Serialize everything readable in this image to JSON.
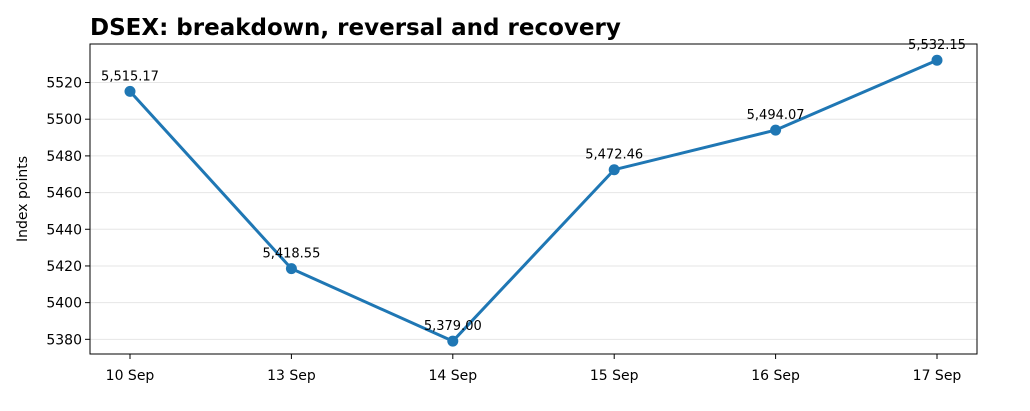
{
  "chart_data": {
    "type": "line",
    "title": "DSEX: breakdown, reversal and recovery",
    "xlabel": "",
    "ylabel": "Index points",
    "categories": [
      "10 Sep",
      "13 Sep",
      "14 Sep",
      "15 Sep",
      "16 Sep",
      "17 Sep"
    ],
    "values": [
      5515.17,
      5418.55,
      5379.0,
      5472.46,
      5494.07,
      5532.15
    ],
    "data_labels": [
      "5,515.17",
      "5,418.55",
      "5,379.00",
      "5,472.46",
      "5,494.07",
      "5,532.15"
    ],
    "yticks": [
      5380,
      5400,
      5420,
      5440,
      5460,
      5480,
      5500,
      5520
    ],
    "ylim": [
      5372,
      5541
    ],
    "grid": "horizontal",
    "legend": "none",
    "line_color": "#1f77b4"
  }
}
